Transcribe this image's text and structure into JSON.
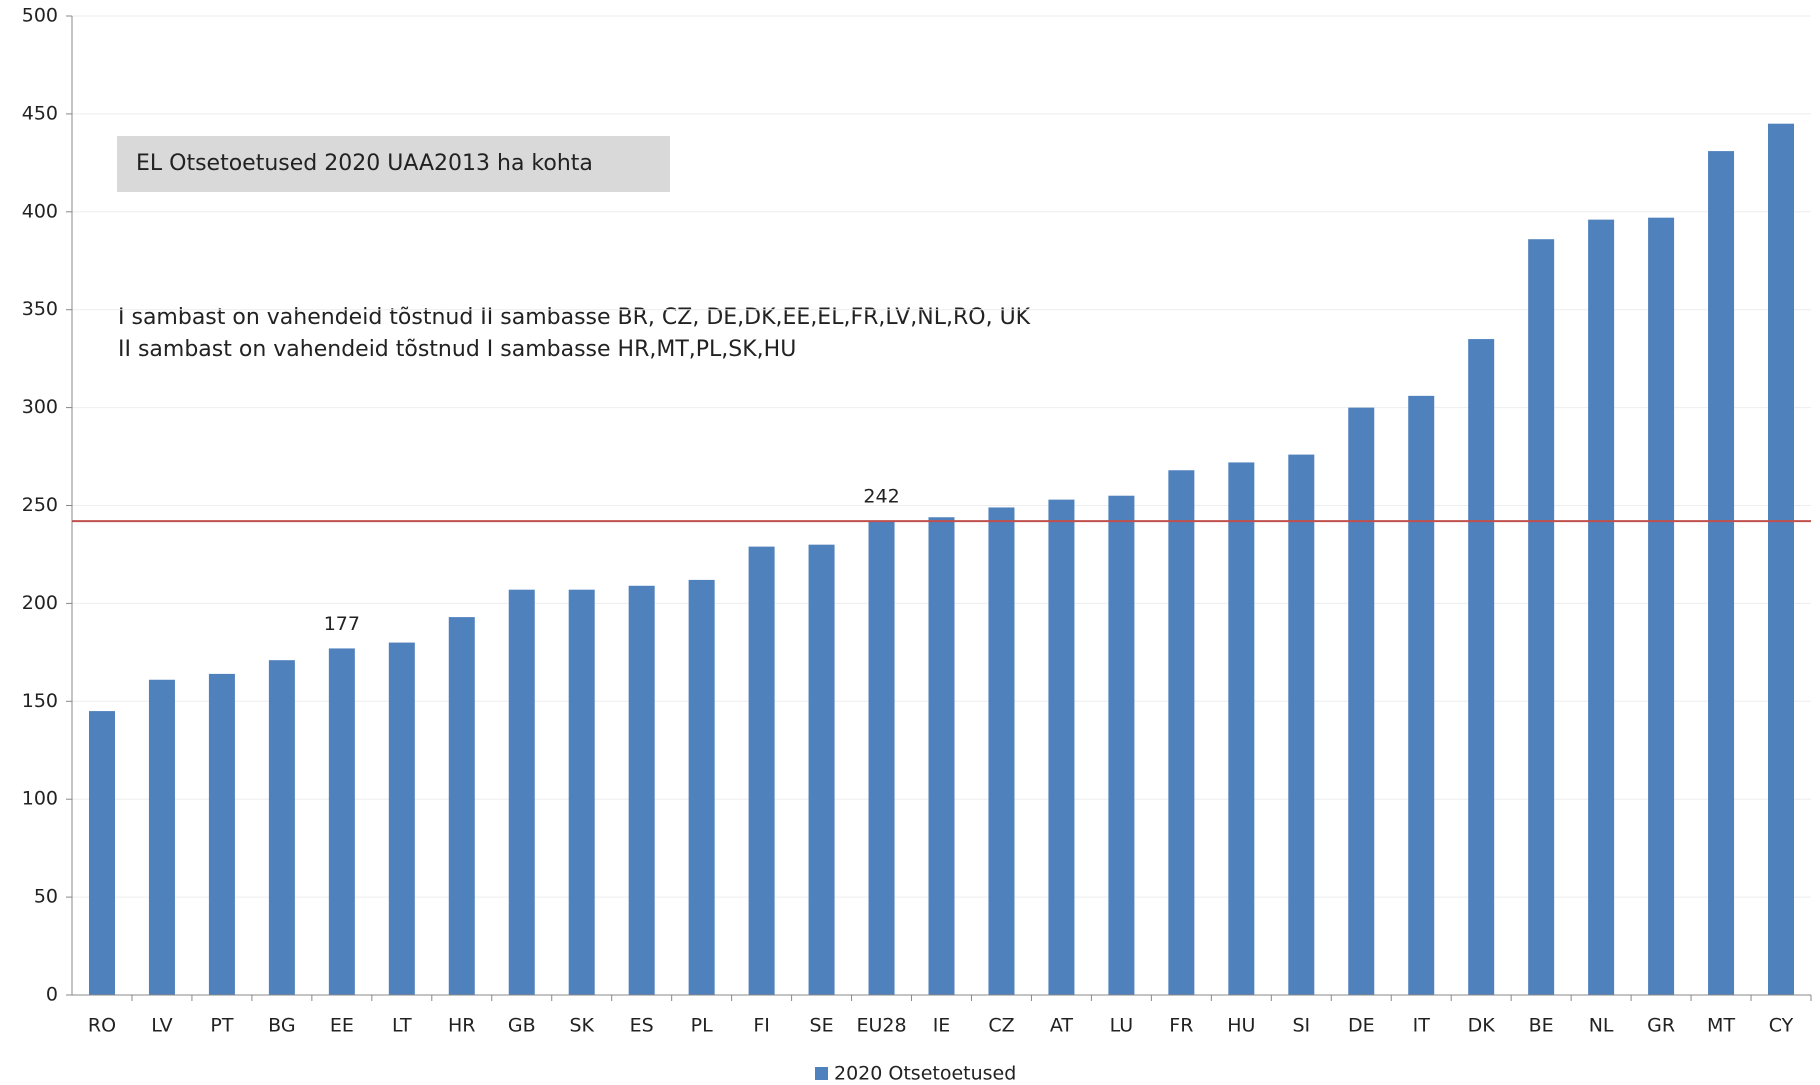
{
  "chart_data": {
    "type": "bar",
    "title": "EL Otsetoetused 2020 UAA2013 ha kohta",
    "annotations": [
      "I sambast on vahendeid tõstnud II sambasse BR, CZ, DE,DK,EE,EL,FR,LV,NL,RO, UK",
      "II sambast on vahendeid tõstnud I sambasse HR,MT,PL,SK,HU"
    ],
    "categories": [
      "RO",
      "LV",
      "PT",
      "BG",
      "EE",
      "LT",
      "HR",
      "GB",
      "SK",
      "ES",
      "PL",
      "FI",
      "SE",
      "EU28",
      "IE",
      "CZ",
      "AT",
      "LU",
      "FR",
      "HU",
      "SI",
      "DE",
      "IT",
      "DK",
      "BE",
      "NL",
      "GR",
      "MT",
      "CY"
    ],
    "series": [
      {
        "name": "2020 Otsetoetused",
        "color": "#4f81bd",
        "values": [
          145,
          161,
          164,
          171,
          177,
          180,
          193,
          207,
          207,
          209,
          212,
          229,
          230,
          242,
          244,
          249,
          253,
          255,
          268,
          272,
          276,
          300,
          306,
          335,
          386,
          396,
          397,
          431,
          445
        ],
        "value_labels": [
          null,
          null,
          null,
          null,
          "177",
          null,
          null,
          null,
          null,
          null,
          null,
          null,
          null,
          "242",
          null,
          null,
          null,
          null,
          null,
          null,
          null,
          null,
          null,
          null,
          null,
          null,
          null,
          null,
          null
        ]
      }
    ],
    "reference_line": {
      "value": 242,
      "color": "#c0504d"
    },
    "ylim": [
      0,
      500
    ],
    "yticks": [
      0,
      50,
      100,
      150,
      200,
      250,
      300,
      350,
      400,
      450,
      500
    ],
    "grid": true,
    "legend": "bottom"
  }
}
